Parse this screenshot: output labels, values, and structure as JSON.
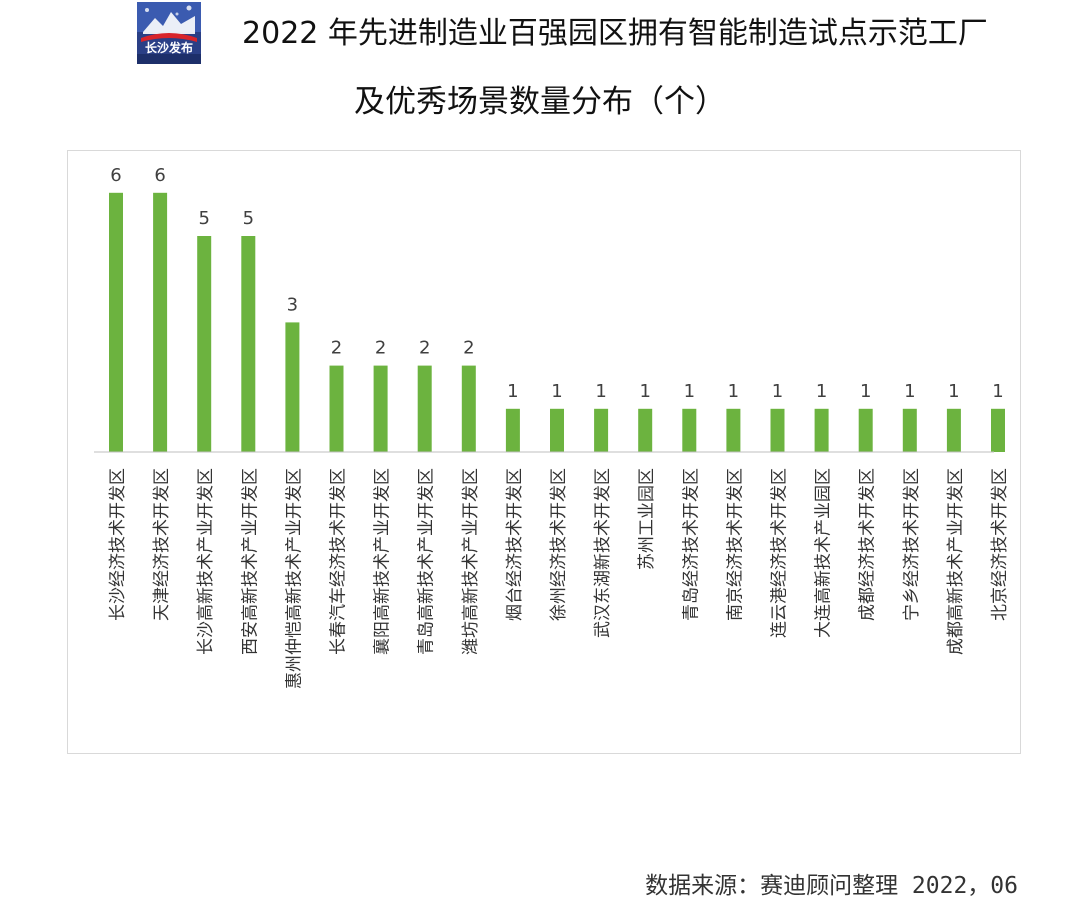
{
  "logo": {
    "text": "长沙发布",
    "icon": "changsha-release-logo"
  },
  "title": {
    "line1": "2022 年先进制造业百强园区拥有智能制造试点示范工厂",
    "line2": "及优秀场景数量分布（个）"
  },
  "source": "数据来源：赛迪顾问整理 2022，06",
  "colors": {
    "bar": "#6cb33f",
    "axis": "#bfbfbf",
    "text": "#404040"
  },
  "chart_data": {
    "type": "bar",
    "title": "",
    "xlabel": "",
    "ylabel": "",
    "ylim": [
      0,
      6
    ],
    "grid": false,
    "legend": "none",
    "categories": [
      "长沙经济技术开发区",
      "天津经济技术开发区",
      "长沙高新技术产业开发区",
      "西安高新技术产业开发区",
      "惠州仲恺高新技术产业开发区",
      "长春汽车经济技术开发区",
      "襄阳高新技术产业开发区",
      "青岛高新技术产业开发区",
      "潍坊高新技术产业开发区",
      "烟台经济技术开发区",
      "徐州经济技术开发区",
      "武汉东湖新技术开发区",
      "苏州工业园区",
      "青岛经济技术开发区",
      "南京经济技术开发区",
      "连云港经济技术开发区",
      "大连高新技术产业园区",
      "成都经济技术开发区",
      "宁乡经济技术开发区",
      "成都高新技术产业开发区",
      "北京经济技术开发区"
    ],
    "values": [
      6,
      6,
      5,
      5,
      3,
      2,
      2,
      2,
      2,
      1,
      1,
      1,
      1,
      1,
      1,
      1,
      1,
      1,
      1,
      1,
      1
    ]
  }
}
